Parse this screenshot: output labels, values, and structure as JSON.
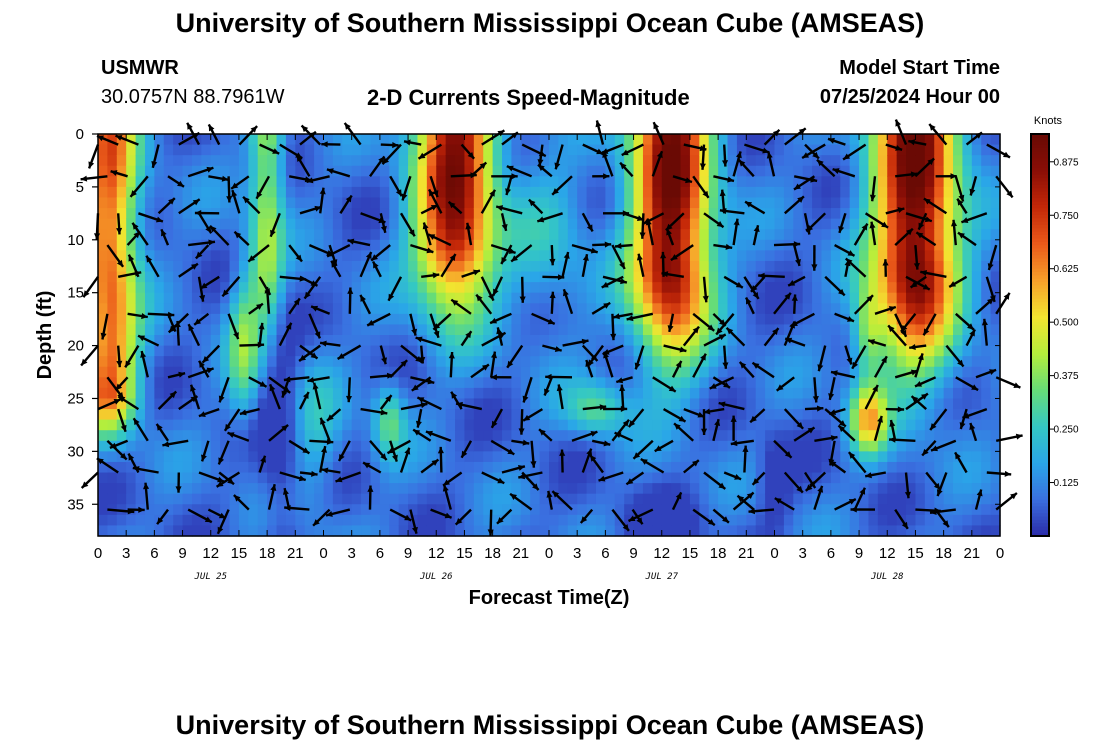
{
  "header": {
    "title": "University of Southern Mississippi Ocean Cube (AMSEAS)",
    "station": "USMWR",
    "coordinates": "30.0757N  88.7961W",
    "subtitle": "2-D Currents Speed-Magnitude",
    "model_start_label": "Model Start Time",
    "model_start_value": "07/25/2024 Hour 00"
  },
  "footer": {
    "title": "University of Southern Mississippi Ocean Cube (AMSEAS)"
  },
  "colors": {
    "scale": [
      "#2a2aa8",
      "#3a6fe0",
      "#2aa6e8",
      "#34c8c4",
      "#66dc78",
      "#b4ee3c",
      "#f2e430",
      "#f7a02a",
      "#ea5a1a",
      "#c42808",
      "#8a0e06",
      "#6a0a04"
    ],
    "arrow": "#000000"
  },
  "chart_data": {
    "type": "heatmap",
    "title": "2-D Currents Speed-Magnitude",
    "xlabel": "Forecast Time(Z)",
    "ylabel": "Depth (ft)",
    "x_range_hours": [
      0,
      96
    ],
    "y_range_ft": [
      0,
      38
    ],
    "x_tick_labels": [
      "0",
      "3",
      "6",
      "9",
      "12",
      "15",
      "18",
      "21",
      "0",
      "3",
      "6",
      "9",
      "12",
      "15",
      "18",
      "21",
      "0",
      "3",
      "6",
      "9",
      "12",
      "15",
      "18",
      "21",
      "0",
      "3",
      "6",
      "9",
      "12",
      "15",
      "18",
      "21",
      "0"
    ],
    "y_ticks": [
      0,
      5,
      10,
      15,
      20,
      25,
      30,
      35
    ],
    "date_labels": [
      {
        "label": "JUL 25",
        "hour": 12
      },
      {
        "label": "JUL 26",
        "hour": 36
      },
      {
        "label": "JUL 27",
        "hour": 60
      },
      {
        "label": "JUL 28",
        "hour": 84
      }
    ],
    "colorbar": {
      "unit": "Knots",
      "range": [
        0,
        0.94
      ],
      "ticks": [
        0.125,
        0.25,
        0.375,
        0.5,
        0.625,
        0.75,
        0.875
      ],
      "tick_labels": [
        "0.125",
        "0.250",
        "0.375",
        "0.500",
        "0.625",
        "0.750",
        "0.875"
      ]
    },
    "speed_features_knots": [
      {
        "hour": 1.5,
        "depth_ft": 10,
        "peak": 0.62
      },
      {
        "hour": 18,
        "depth_ft": 4,
        "peak": 0.45
      },
      {
        "hour": 38,
        "depth_ft": 6,
        "peak": 0.9
      },
      {
        "hour": 61,
        "depth_ft": 8,
        "peak": 0.92
      },
      {
        "hour": 82,
        "depth_ft": 27,
        "peak": 0.52
      },
      {
        "hour": 87,
        "depth_ft": 8,
        "peak": 0.92
      },
      {
        "hour": 31,
        "depth_ft": 27,
        "peak": 0.3
      },
      {
        "hour": 54,
        "depth_ft": 26,
        "peak": 0.3
      }
    ],
    "arrow_note": "Black arrows show current direction at each time/depth sample"
  }
}
